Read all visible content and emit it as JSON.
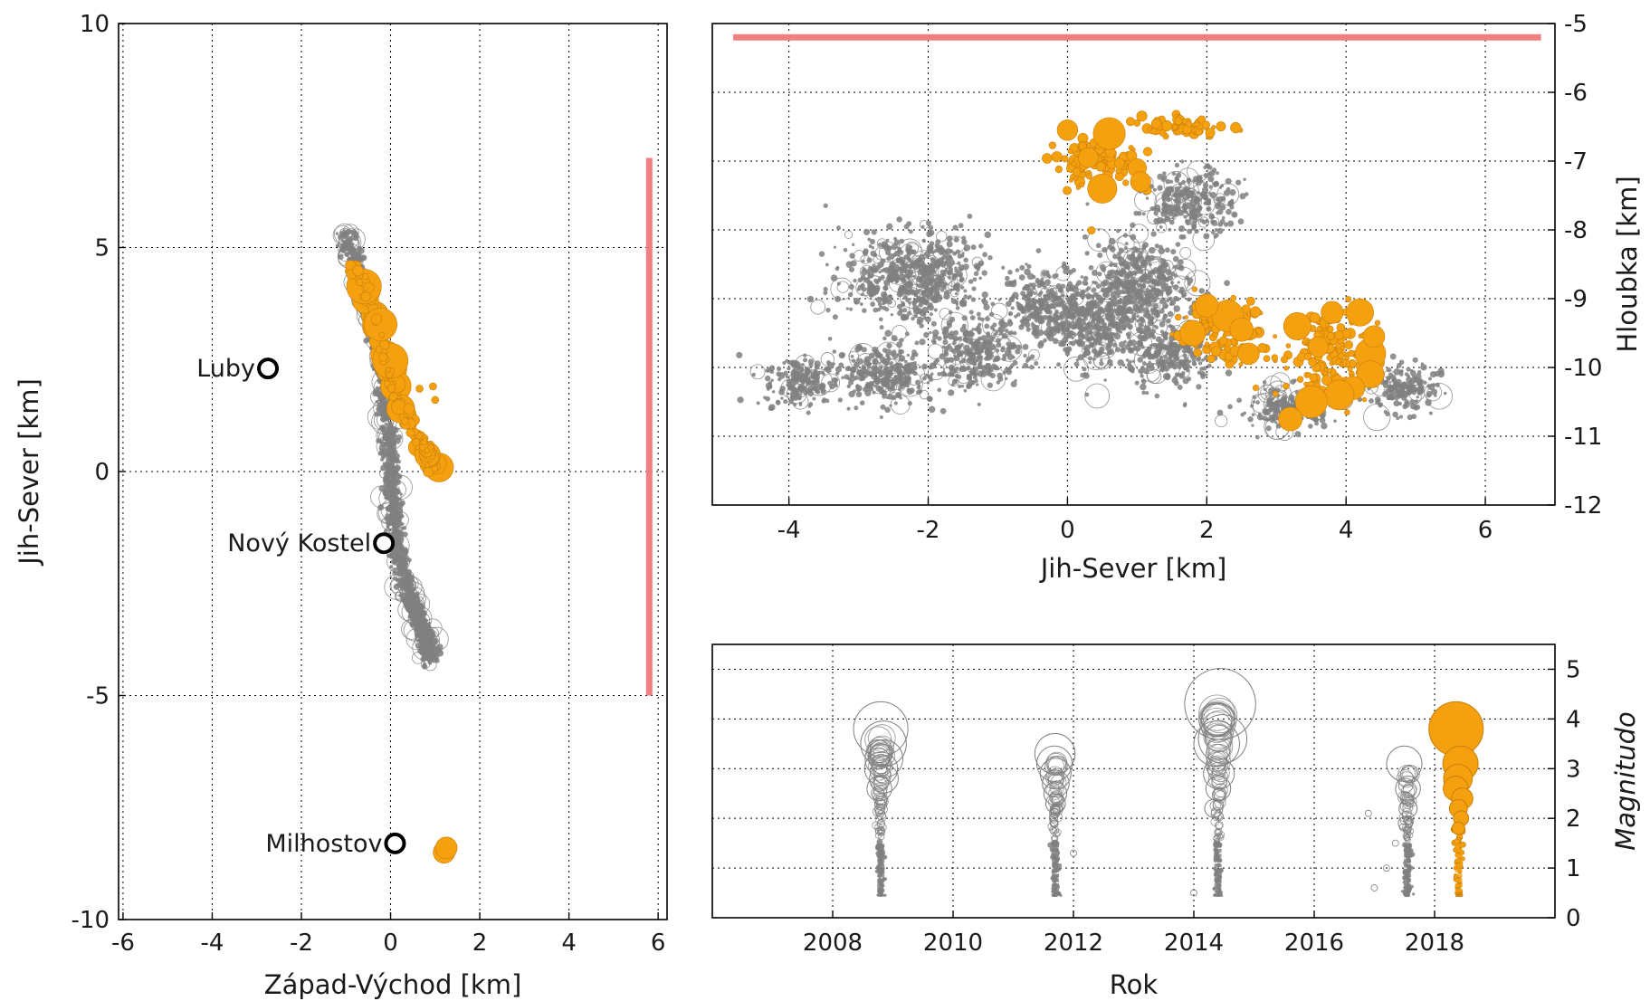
{
  "colors": {
    "background_events": "#808080",
    "events_2018": "#F5A00F",
    "event_edge_2018": "#C87F0A",
    "section_line": "#F08080",
    "town_marker": "#000000",
    "grid": "#000000"
  },
  "chart_data": [
    {
      "id": "map",
      "type": "scatter",
      "title": "",
      "xlabel": "Západ-Východ [km]",
      "ylabel": "Jih-Sever [km]",
      "xlim": [
        -6.1,
        6.2
      ],
      "ylim": [
        -10,
        10
      ],
      "xticks": [
        "-6",
        "-4",
        "-2",
        "0",
        "2",
        "4",
        "6"
      ],
      "yticks": [
        "10",
        "5",
        "0",
        "-5",
        "-10"
      ],
      "grid": true,
      "towns": [
        {
          "name": "Luby",
          "x": -2.75,
          "y": 2.3
        },
        {
          "name": "Nový Kostel",
          "x": -0.15,
          "y": -1.6
        },
        {
          "name": "Milhostov",
          "x": 0.1,
          "y": -8.3
        }
      ],
      "section_line": {
        "x": [
          5.8,
          5.8
        ],
        "y": [
          -5.0,
          7.0
        ]
      },
      "gray_cluster_path": {
        "x": [
          -1.05,
          -0.65,
          -0.35,
          -0.15,
          -0.05,
          0.0,
          0.05,
          0.15,
          0.35,
          0.6,
          0.8,
          0.9
        ],
        "y": [
          5.3,
          4.3,
          3.2,
          2.0,
          1.0,
          0.0,
          -1.0,
          -1.8,
          -2.6,
          -3.2,
          -3.7,
          -4.2
        ]
      },
      "orange_cluster_path": {
        "x": [
          -0.85,
          -0.55,
          -0.35,
          -0.15,
          0.2,
          0.5,
          0.8,
          0.95
        ],
        "y": [
          4.6,
          4.0,
          3.3,
          2.4,
          1.4,
          1.0,
          0.5,
          0.05
        ]
      },
      "orange_outliers": [
        {
          "x": 0.65,
          "y": 1.85
        },
        {
          "x": 0.95,
          "y": 1.9
        },
        {
          "x": 1.0,
          "y": 1.6
        },
        {
          "x": 1.2,
          "y": -8.5
        },
        {
          "x": 1.25,
          "y": -8.4
        }
      ]
    },
    {
      "id": "depth_section",
      "type": "scatter",
      "title": "",
      "xlabel": "Jih-Sever [km]",
      "ylabel": "Hloubka [km]",
      "xlim": [
        -5.1,
        7.0
      ],
      "ylim": [
        -12,
        -5
      ],
      "xticks": [
        "-4",
        "-2",
        "0",
        "2",
        "4",
        "6"
      ],
      "yticks": [
        "-5",
        "-6",
        "-7",
        "-8",
        "-9",
        "-10",
        "-11",
        "-12"
      ],
      "grid": true,
      "section_line": {
        "x": [
          -4.8,
          6.8
        ],
        "y": [
          -5.2,
          -5.2
        ]
      },
      "gray_cloud": [
        {
          "x": -3.8,
          "y": -10.2,
          "sx": 0.45,
          "sy": 0.3
        },
        {
          "x": -2.6,
          "y": -10.1,
          "sx": 0.6,
          "sy": 0.35
        },
        {
          "x": -1.3,
          "y": -9.8,
          "sx": 0.55,
          "sy": 0.4
        },
        {
          "x": -2.2,
          "y": -8.7,
          "sx": 0.9,
          "sy": 0.55
        },
        {
          "x": -0.3,
          "y": -9.1,
          "sx": 0.5,
          "sy": 0.4
        },
        {
          "x": 0.4,
          "y": -9.4,
          "sx": 0.6,
          "sy": 0.5
        },
        {
          "x": 1.0,
          "y": -8.8,
          "sx": 0.6,
          "sy": 0.55
        },
        {
          "x": 1.5,
          "y": -9.8,
          "sx": 0.5,
          "sy": 0.4
        },
        {
          "x": 4.8,
          "y": -10.3,
          "sx": 0.4,
          "sy": 0.3
        },
        {
          "x": 3.2,
          "y": -10.6,
          "sx": 0.6,
          "sy": 0.25
        },
        {
          "x": 1.8,
          "y": -7.6,
          "sx": 0.5,
          "sy": 0.4
        }
      ],
      "orange_clusters": [
        {
          "x": 0.5,
          "y": -7.0,
          "sx": 0.45,
          "sy": 0.35,
          "big": [
            [
              0.0,
              -6.55
            ],
            [
              0.3,
              -6.95
            ],
            [
              0.5,
              -7.4
            ],
            [
              1.0,
              -7.1
            ],
            [
              1.05,
              -7.3
            ],
            [
              0.6,
              -6.6
            ]
          ]
        },
        {
          "x": 2.2,
          "y": -9.5,
          "sx": 0.5,
          "sy": 0.35,
          "big": [
            [
              1.8,
              -9.5
            ],
            [
              2.3,
              -9.25
            ],
            [
              2.6,
              -9.8
            ],
            [
              2.0,
              -9.1
            ],
            [
              2.5,
              -9.45
            ]
          ]
        },
        {
          "x": 3.7,
          "y": -9.8,
          "sx": 0.5,
          "sy": 0.55,
          "big": [
            [
              3.3,
              -9.4
            ],
            [
              3.6,
              -9.7
            ],
            [
              3.8,
              -9.2
            ],
            [
              4.2,
              -9.2
            ],
            [
              4.35,
              -9.8
            ],
            [
              4.35,
              -10.1
            ],
            [
              4.1,
              -10.3
            ],
            [
              3.9,
              -10.4
            ],
            [
              3.5,
              -10.5
            ],
            [
              3.2,
              -10.75
            ],
            [
              4.4,
              -9.55
            ]
          ]
        },
        {
          "x": 1.7,
          "y": -6.5,
          "sx": 0.5,
          "sy": 0.12,
          "big": []
        }
      ]
    },
    {
      "id": "magnitude_time",
      "type": "scatter",
      "title": "",
      "xlabel": "Rok",
      "ylabel": "Magnitudo",
      "xlim": [
        2006.0,
        2020.0
      ],
      "ylim": [
        0,
        5.5
      ],
      "xticks": [
        "2008",
        "2010",
        "2012",
        "2014",
        "2016",
        "2018"
      ],
      "yticks": [
        "0",
        "1",
        "2",
        "3",
        "4",
        "5"
      ],
      "grid": true,
      "swarms": [
        {
          "year": 2008.8,
          "max_m": 3.8,
          "color": "gray",
          "large_events": [
            3.8,
            3.5,
            3.2,
            3.0,
            2.8,
            2.6
          ]
        },
        {
          "year": 2011.7,
          "max_m": 3.3,
          "color": "gray",
          "large_events": [
            3.3,
            3.1,
            2.9,
            2.7,
            2.5,
            2.3
          ]
        },
        {
          "year": 2014.4,
          "max_m": 4.3,
          "color": "gray",
          "large_events": [
            4.3,
            3.6,
            3.5,
            2.9,
            2.6,
            2.2
          ]
        },
        {
          "year": 2017.55,
          "max_m": 3.1,
          "color": "gray",
          "large_events": [
            3.1,
            2.6,
            2.2,
            1.9
          ]
        },
        {
          "year": 2018.4,
          "max_m": 3.8,
          "color": "orange",
          "large_events": [
            3.8,
            3.1,
            2.8,
            2.6,
            2.4,
            2.2,
            2.0,
            1.8
          ]
        }
      ],
      "outliers": [
        {
          "x": 2016.9,
          "y": 2.1
        },
        {
          "x": 2017.2,
          "y": 1.0
        },
        {
          "x": 2017.0,
          "y": 0.6
        },
        {
          "x": 2014.0,
          "y": 0.5
        },
        {
          "x": 2012.0,
          "y": 1.3
        },
        {
          "x": 2017.35,
          "y": 1.5
        }
      ]
    }
  ]
}
